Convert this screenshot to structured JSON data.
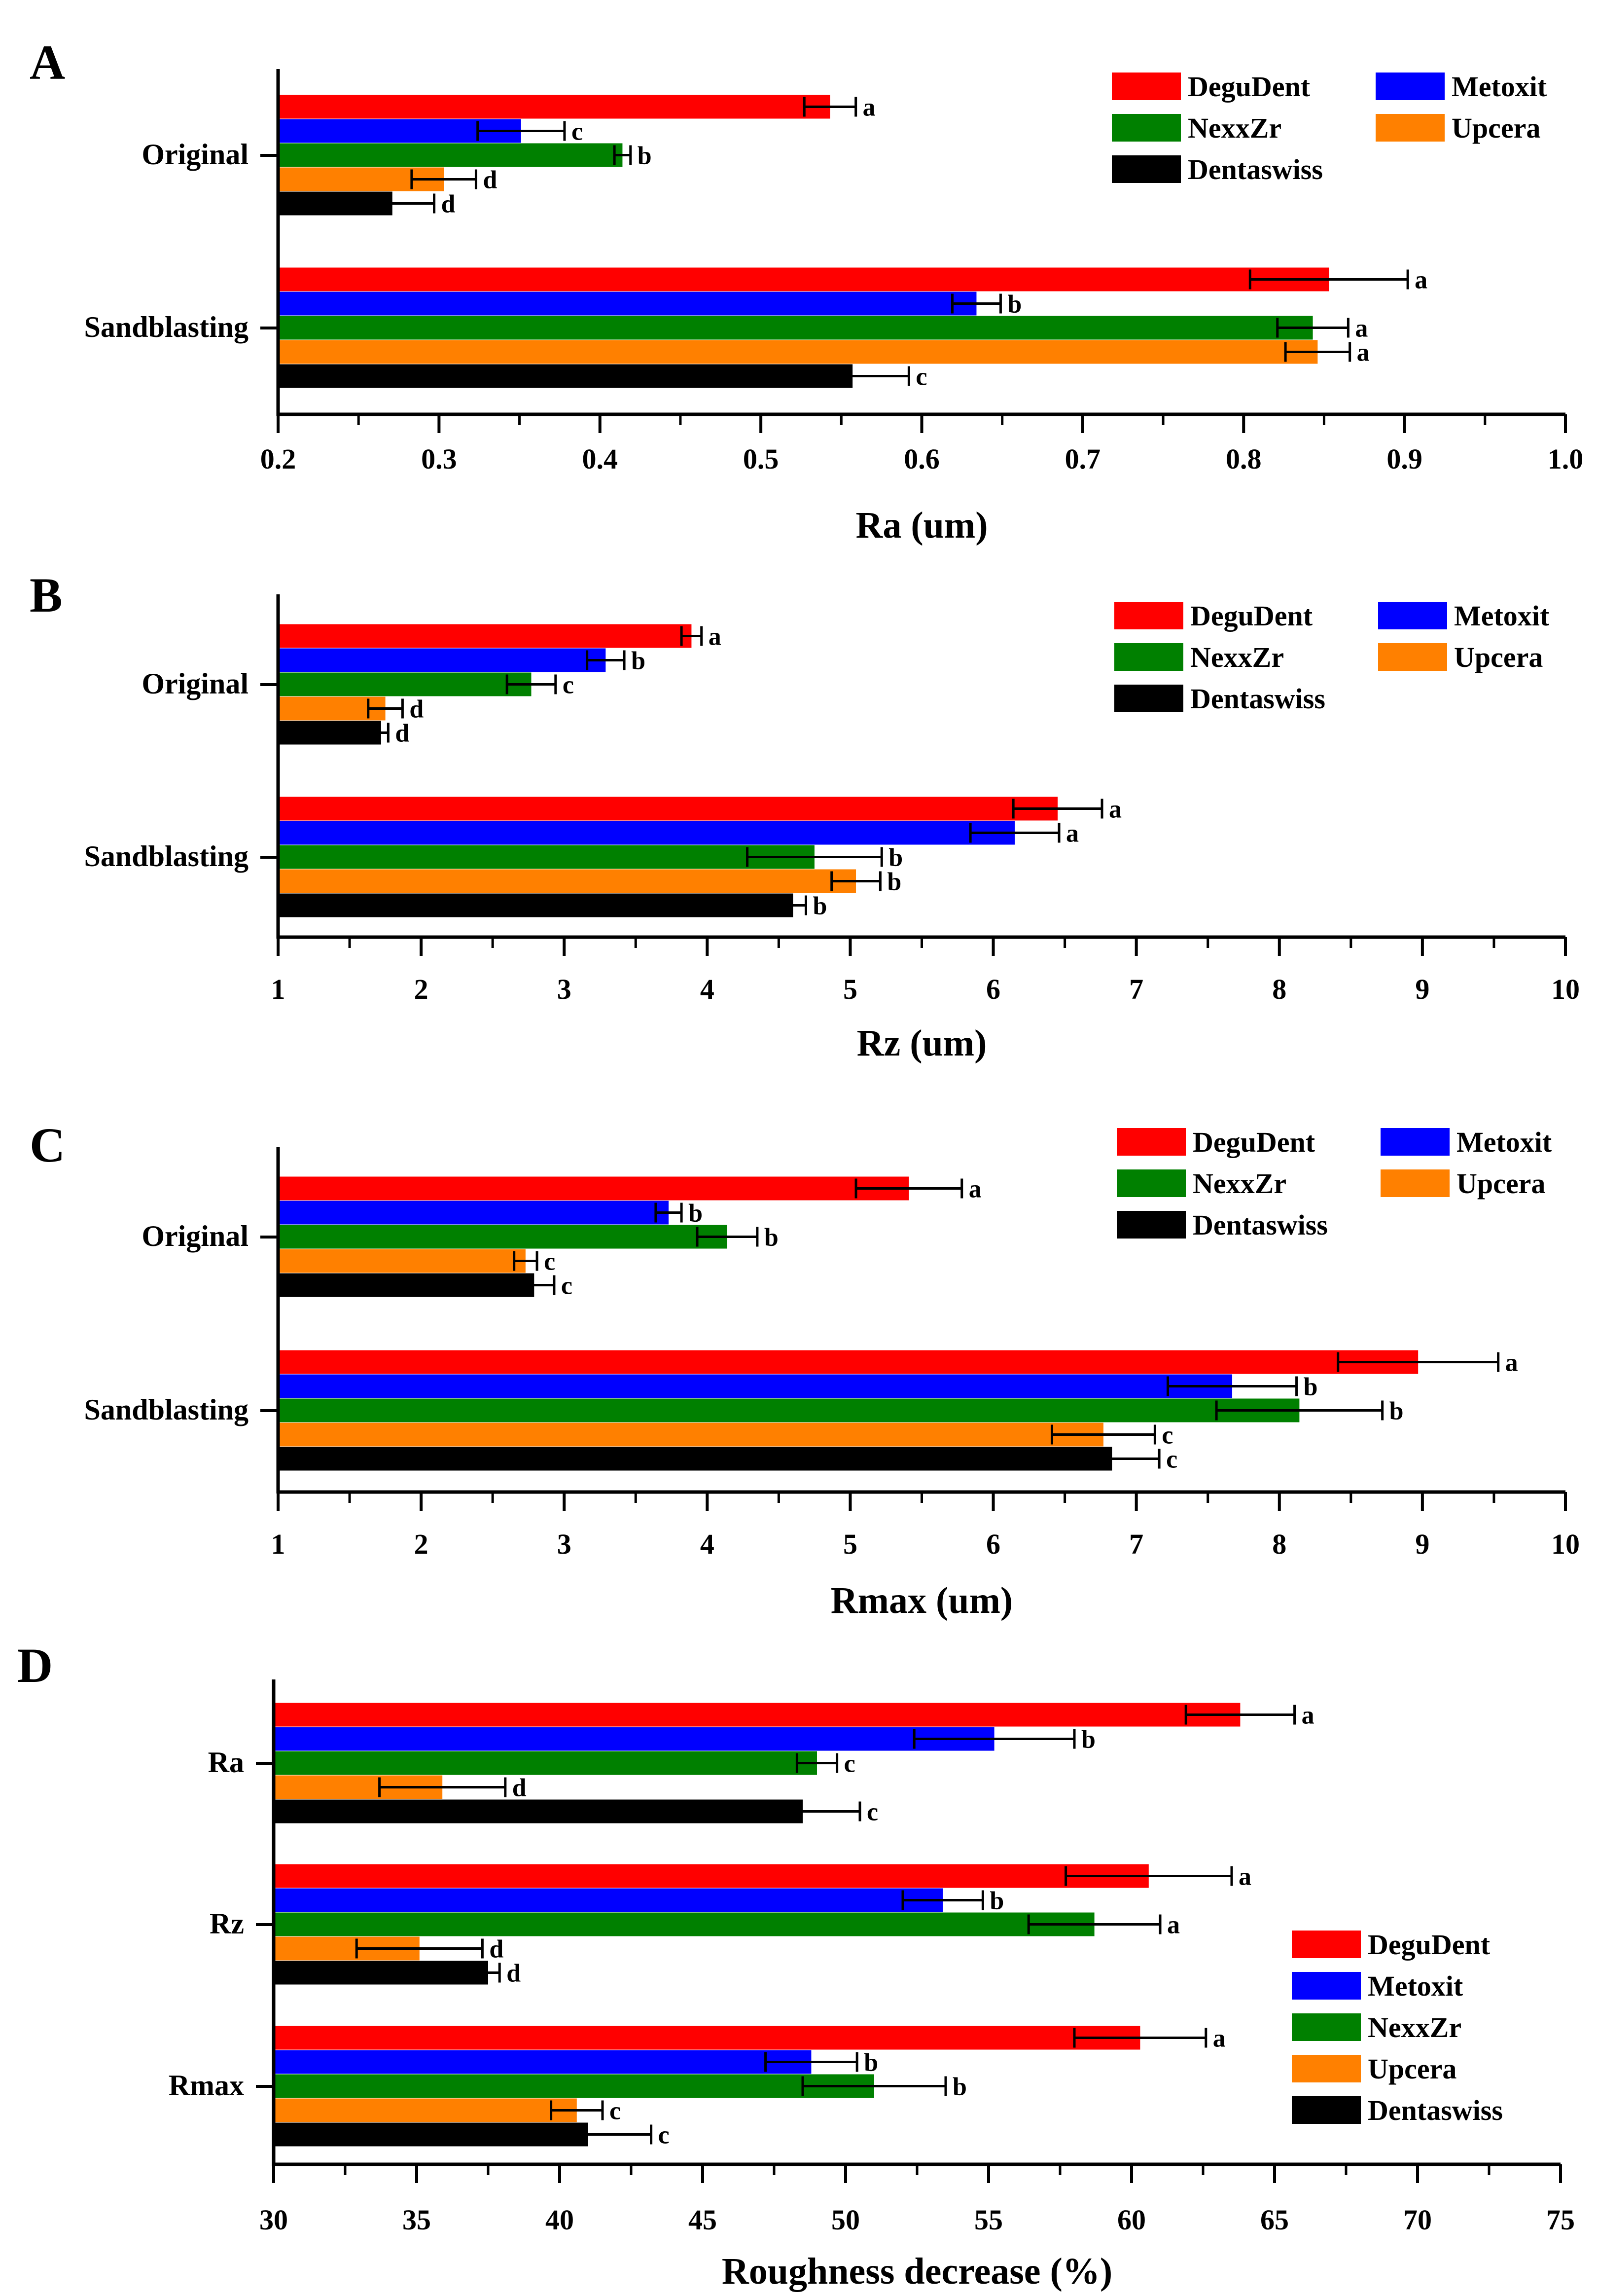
{
  "colors": {
    "DeguDent": "#ff0000",
    "Metoxit": "#0000ff",
    "NexxZr": "#008000",
    "Upcera": "#ff8000",
    "Dentaswiss": "#000000"
  },
  "chart_data": [
    {
      "type": "bar",
      "orientation": "horizontal",
      "panel_label": "A",
      "xlabel": "Ra (um)",
      "xlim": [
        0.2,
        1.0
      ],
      "xticks": [
        0.2,
        0.3,
        0.4,
        0.5,
        0.6,
        0.7,
        0.8,
        0.9,
        1.0
      ],
      "xtick_labels": [
        "0.2",
        "0.3",
        "0.4",
        "0.5",
        "0.6",
        "0.7",
        "0.8",
        "0.9",
        "1.0"
      ],
      "categories": [
        "Original",
        "Sandblasting"
      ],
      "legend_labels": [
        "DeguDent",
        "Metoxit",
        "NexxZr",
        "Upcera",
        "Dentaswiss"
      ],
      "legend_placement": "top-right",
      "series": [
        {
          "name": "DeguDent",
          "values": [
            0.543,
            0.853
          ],
          "errors": [
            0.016,
            0.049
          ],
          "letters": [
            "a",
            "a"
          ]
        },
        {
          "name": "Metoxit",
          "values": [
            0.351,
            0.634
          ],
          "errors": [
            0.027,
            0.015
          ],
          "letters": [
            "c",
            "b"
          ]
        },
        {
          "name": "NexxZr",
          "values": [
            0.414,
            0.843
          ],
          "errors": [
            0.005,
            0.022
          ],
          "letters": [
            "b",
            "a"
          ]
        },
        {
          "name": "Upcera",
          "values": [
            0.303,
            0.846
          ],
          "errors": [
            0.02,
            0.02
          ],
          "letters": [
            "d",
            "a"
          ]
        },
        {
          "name": "Dentaswiss",
          "values": [
            0.271,
            0.557
          ],
          "errors": [
            0.026,
            0.035
          ],
          "letters": [
            "d",
            "c"
          ]
        }
      ]
    },
    {
      "type": "bar",
      "orientation": "horizontal",
      "panel_label": "B",
      "xlabel": "Rz (um)",
      "xlim": [
        1,
        10
      ],
      "xticks": [
        1,
        2,
        3,
        4,
        5,
        6,
        7,
        8,
        9,
        10
      ],
      "xtick_labels": [
        "1",
        "2",
        "3",
        "4",
        "5",
        "6",
        "7",
        "8",
        "9",
        "10"
      ],
      "categories": [
        "Original",
        "Sandblasting"
      ],
      "legend_labels": [
        "DeguDent",
        "Metoxit",
        "NexxZr",
        "Upcera",
        "Dentaswiss"
      ],
      "legend_placement": "top-right",
      "series": [
        {
          "name": "DeguDent",
          "values": [
            3.89,
            6.45
          ],
          "errors": [
            0.07,
            0.31
          ],
          "letters": [
            "a",
            "a"
          ]
        },
        {
          "name": "Metoxit",
          "values": [
            3.29,
            6.15
          ],
          "errors": [
            0.13,
            0.31
          ],
          "letters": [
            "b",
            "a"
          ]
        },
        {
          "name": "NexxZr",
          "values": [
            2.77,
            4.75
          ],
          "errors": [
            0.17,
            0.47
          ],
          "letters": [
            "c",
            "b"
          ]
        },
        {
          "name": "Upcera",
          "values": [
            1.75,
            5.04
          ],
          "errors": [
            0.12,
            0.17
          ],
          "letters": [
            "d",
            "b"
          ]
        },
        {
          "name": "Dentaswiss",
          "values": [
            1.72,
            4.6
          ],
          "errors": [
            0.05,
            0.09
          ],
          "letters": [
            "d",
            "b"
          ]
        }
      ]
    },
    {
      "type": "bar",
      "orientation": "horizontal",
      "panel_label": "C",
      "xlabel": "Rmax (um)",
      "xlim": [
        1,
        10
      ],
      "xticks": [
        1,
        2,
        3,
        4,
        5,
        6,
        7,
        8,
        9,
        10
      ],
      "xtick_labels": [
        "1",
        "2",
        "3",
        "4",
        "5",
        "6",
        "7",
        "8",
        "9",
        "10"
      ],
      "categories": [
        "Original",
        "Sandblasting"
      ],
      "legend_labels": [
        "DeguDent",
        "Metoxit",
        "NexxZr",
        "Upcera",
        "Dentaswiss"
      ],
      "legend_placement": "top-right",
      "series": [
        {
          "name": "DeguDent",
          "values": [
            5.41,
            8.97
          ],
          "errors": [
            0.37,
            0.56
          ],
          "letters": [
            "a",
            "a"
          ]
        },
        {
          "name": "Metoxit",
          "values": [
            3.73,
            7.67
          ],
          "errors": [
            0.09,
            0.45
          ],
          "letters": [
            "b",
            "b"
          ]
        },
        {
          "name": "NexxZr",
          "values": [
            4.14,
            8.14
          ],
          "errors": [
            0.21,
            0.58
          ],
          "letters": [
            "b",
            "b"
          ]
        },
        {
          "name": "Upcera",
          "values": [
            2.73,
            6.77
          ],
          "errors": [
            0.08,
            0.36
          ],
          "letters": [
            "c",
            "c"
          ]
        },
        {
          "name": "Dentaswiss",
          "values": [
            2.79,
            6.83
          ],
          "errors": [
            0.14,
            0.33
          ],
          "letters": [
            "c",
            "c"
          ]
        }
      ]
    },
    {
      "type": "bar",
      "orientation": "horizontal",
      "panel_label": "D",
      "xlabel": "Roughness decrease (%)",
      "xlim": [
        30,
        75
      ],
      "xticks": [
        30,
        35,
        40,
        45,
        50,
        55,
        60,
        65,
        70,
        75
      ],
      "xtick_labels": [
        "30",
        "35",
        "40",
        "45",
        "50",
        "55",
        "60",
        "65",
        "70",
        "75"
      ],
      "categories": [
        "Ra",
        "Rz",
        "Rmax"
      ],
      "legend_labels": [
        "DeguDent",
        "Metoxit",
        "NexxZr",
        "Upcera",
        "Dentaswiss"
      ],
      "legend_placement": "bottom-right",
      "series": [
        {
          "name": "DeguDent",
          "values": [
            63.8,
            60.6,
            60.3
          ],
          "errors": [
            1.9,
            2.9,
            2.3
          ],
          "letters": [
            "a",
            "a",
            "a"
          ]
        },
        {
          "name": "Metoxit",
          "values": [
            55.2,
            53.4,
            48.8
          ],
          "errors": [
            2.8,
            1.4,
            1.6
          ],
          "letters": [
            "b",
            "b",
            "b"
          ]
        },
        {
          "name": "NexxZr",
          "values": [
            49.0,
            58.7,
            51.0
          ],
          "errors": [
            0.7,
            2.3,
            2.5
          ],
          "letters": [
            "c",
            "a",
            "b"
          ]
        },
        {
          "name": "Upcera",
          "values": [
            35.9,
            35.1,
            40.6
          ],
          "errors": [
            2.2,
            2.2,
            0.9
          ],
          "letters": [
            "d",
            "d",
            "c"
          ]
        },
        {
          "name": "Dentaswiss",
          "values": [
            48.5,
            37.5,
            41.0
          ],
          "errors": [
            2.0,
            0.4,
            2.2
          ],
          "letters": [
            "c",
            "d",
            "c"
          ]
        }
      ]
    }
  ]
}
